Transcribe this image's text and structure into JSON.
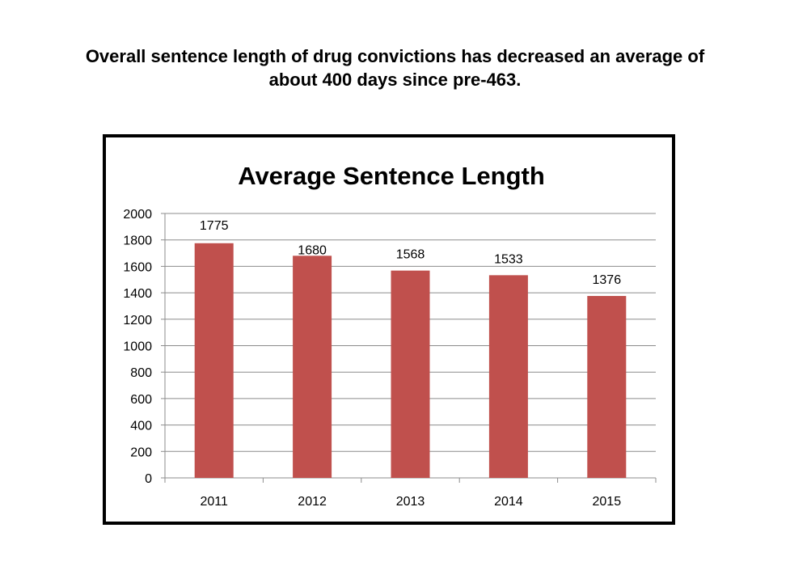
{
  "slide": {
    "title_line1": "Overall sentence length of drug convictions has decreased an average of",
    "title_line2": "about 400 days since pre-463."
  },
  "colors": {
    "bar": "#c0504d",
    "grid": "#8c8c8c",
    "axis": "#8c8c8c",
    "frame": "#000000"
  },
  "chart_data": {
    "type": "bar",
    "title": "Average Sentence Length",
    "categories": [
      "2011",
      "2012",
      "2013",
      "2014",
      "2015"
    ],
    "values": [
      1775,
      1680,
      1568,
      1533,
      1376
    ],
    "data_labels": [
      "1775",
      "1680",
      "1568",
      "1533",
      "1376"
    ],
    "ylim": [
      0,
      2000
    ],
    "yticks": [
      0,
      200,
      400,
      600,
      800,
      1000,
      1200,
      1400,
      1600,
      1800,
      2000
    ],
    "grid": true,
    "legend": "none",
    "xlabel": "",
    "ylabel": ""
  }
}
